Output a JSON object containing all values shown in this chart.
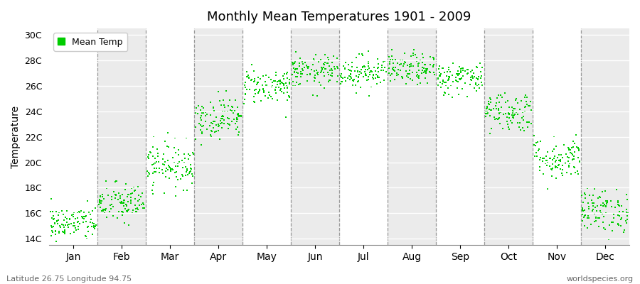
{
  "title": "Monthly Mean Temperatures 1901 - 2009",
  "ylabel": "Temperature",
  "xlabel_labels": [
    "Jan",
    "Feb",
    "Mar",
    "Apr",
    "May",
    "Jun",
    "Jul",
    "Aug",
    "Sep",
    "Oct",
    "Nov",
    "Dec"
  ],
  "ytick_labels": [
    "14C",
    "16C",
    "18C",
    "20C",
    "22C",
    "24C",
    "26C",
    "28C",
    "30C"
  ],
  "ytick_values": [
    14,
    16,
    18,
    20,
    22,
    24,
    26,
    28,
    30
  ],
  "ylim": [
    13.5,
    30.5
  ],
  "xlim": [
    0,
    12
  ],
  "legend_label": "Mean Temp",
  "dot_color": "#00cc00",
  "bg_color": "#ffffff",
  "band_color": "#ebebeb",
  "footer_left": "Latitude 26.75 Longitude 94.75",
  "footer_right": "worldspecies.org",
  "monthly_means": [
    15.2,
    16.8,
    19.8,
    23.5,
    26.0,
    27.1,
    27.1,
    27.3,
    26.6,
    24.0,
    20.3,
    16.2
  ],
  "monthly_stds": [
    0.7,
    0.8,
    0.9,
    0.8,
    0.7,
    0.65,
    0.65,
    0.6,
    0.65,
    0.8,
    0.85,
    0.85
  ],
  "n_years": 109,
  "seed": 42
}
